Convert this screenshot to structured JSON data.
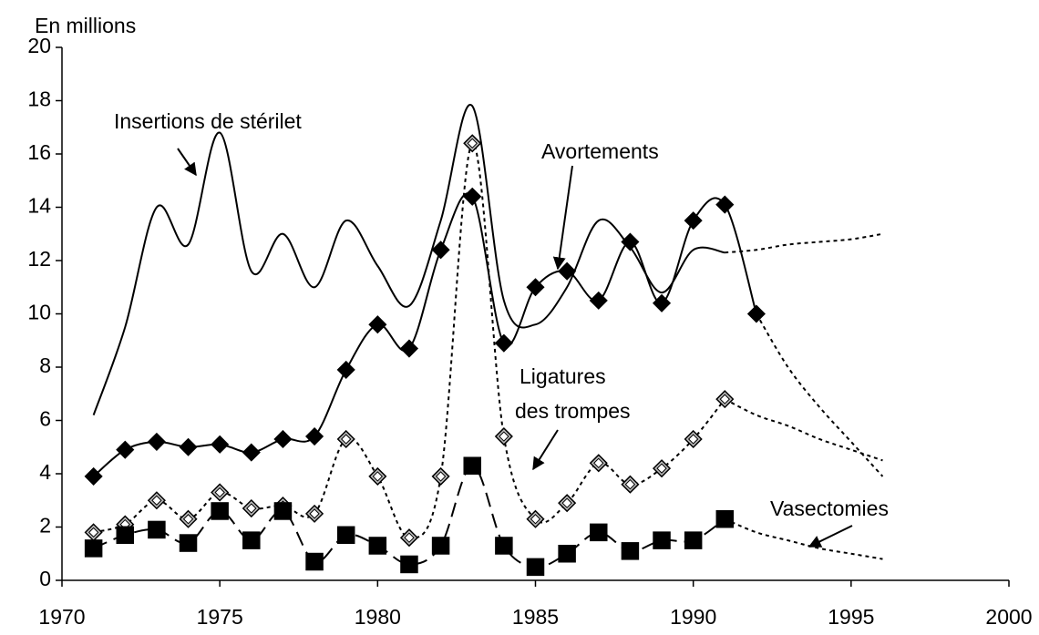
{
  "chart_data": {
    "type": "line",
    "y_axis_label": "En millions",
    "x": [
      1971,
      1972,
      1973,
      1974,
      1975,
      1976,
      1977,
      1978,
      1979,
      1980,
      1981,
      1982,
      1983,
      1984,
      1985,
      1986,
      1987,
      1988,
      1989,
      1990,
      1991,
      1992,
      1993,
      1994,
      1995,
      1996
    ],
    "xlim": [
      1970,
      2000
    ],
    "xticks": [
      1970,
      1975,
      1980,
      1985,
      1990,
      1995,
      2000
    ],
    "ylim": [
      0,
      20
    ],
    "yticks": [
      0,
      2,
      4,
      6,
      8,
      10,
      12,
      14,
      16,
      18,
      20
    ],
    "series": [
      {
        "name": "Insertions de stérilet",
        "color": "#000000",
        "dash": "solid",
        "marker": "none",
        "extension_from": 1991,
        "values": [
          6.2,
          9.5,
          14.0,
          12.6,
          16.8,
          11.6,
          13.0,
          11.0,
          13.5,
          11.8,
          10.3,
          13.5,
          17.8,
          10.5,
          9.6,
          11.0,
          13.5,
          12.5,
          10.8,
          12.4,
          12.3,
          12.4,
          12.6,
          12.7,
          12.8,
          13.0
        ]
      },
      {
        "name": "Avortements",
        "color": "#000000",
        "dash": "solid",
        "marker": "diamond",
        "marker_until": 1992,
        "extension_from": 1992,
        "values": [
          3.9,
          4.9,
          5.2,
          5.0,
          5.1,
          4.8,
          5.3,
          5.4,
          7.9,
          9.6,
          8.7,
          12.4,
          14.4,
          8.9,
          11.0,
          11.6,
          10.5,
          12.7,
          10.4,
          13.5,
          14.1,
          10.0,
          8.0,
          6.5,
          5.2,
          3.9
        ]
      },
      {
        "name": "Ligatures des trompes",
        "color": "#000000",
        "dash": "short",
        "marker": "open-diamond",
        "marker_until": 1991,
        "extension_from": 1991,
        "values": [
          1.8,
          2.1,
          3.0,
          2.3,
          3.3,
          2.7,
          2.8,
          2.5,
          5.3,
          3.9,
          1.6,
          3.9,
          16.4,
          5.4,
          2.3,
          2.9,
          4.4,
          3.6,
          4.2,
          5.3,
          6.8,
          6.2,
          5.8,
          5.3,
          4.9,
          4.5
        ]
      },
      {
        "name": "Vasectomies",
        "color": "#000000",
        "dash": "long",
        "marker": "square",
        "marker_until": 1991,
        "extension_from": 1991,
        "values": [
          1.2,
          1.7,
          1.9,
          1.4,
          2.6,
          1.5,
          2.6,
          0.7,
          1.7,
          1.3,
          0.6,
          1.3,
          4.3,
          1.3,
          0.5,
          1.0,
          1.8,
          1.1,
          1.5,
          1.5,
          2.3,
          1.8,
          1.5,
          1.2,
          1.0,
          0.8
        ]
      }
    ]
  }
}
